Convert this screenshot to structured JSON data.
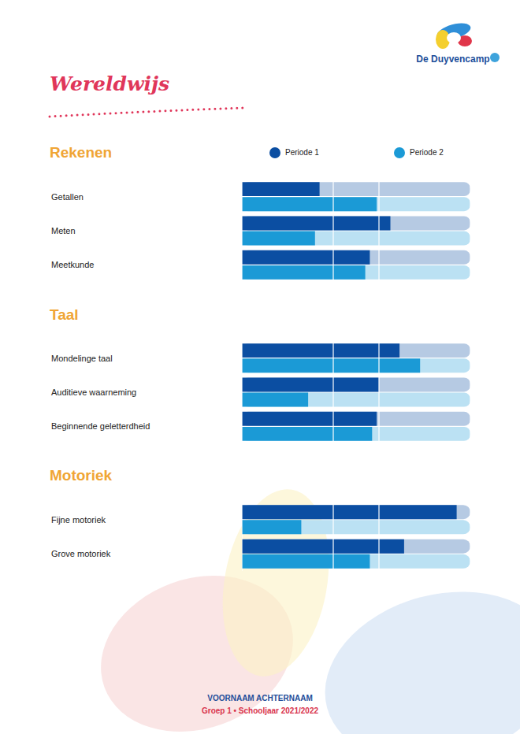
{
  "page": {
    "heading": "Wereldwijs",
    "logo": "De Duyvencamp",
    "footer": {
      "name": "VOORNAAM ACHTERNAAM",
      "line": "Groep 1 • Schooljaar 2021/2022"
    }
  },
  "chart_data": [
    {
      "type": "bar",
      "title": "Rekenen",
      "orientation": "horizontal",
      "categories": [
        "Getallen",
        "Meten",
        "Meetkunde"
      ],
      "series": [
        {
          "name": "Periode 1",
          "color": "#0b4ea2",
          "values": [
            34,
            65,
            56
          ]
        },
        {
          "name": "Periode 2",
          "color": "#1b9ad6",
          "values": [
            59,
            32,
            54
          ]
        }
      ],
      "xlim": [
        0,
        100
      ],
      "xticks": [
        0,
        40,
        60,
        100
      ],
      "grid": true,
      "tick_labels": "y",
      "legend": "top-right"
    },
    {
      "type": "bar",
      "title": "Taal",
      "orientation": "horizontal",
      "categories": [
        "Mondelinge taal",
        "Auditieve waarneming",
        "Beginnende geletterdheid"
      ],
      "series": [
        {
          "name": "Periode 1",
          "color": "#0b4ea2",
          "values": [
            69,
            60,
            59
          ]
        },
        {
          "name": "Periode 2",
          "color": "#1b9ad6",
          "values": [
            78,
            29,
            57
          ]
        }
      ],
      "xlim": [
        0,
        100
      ],
      "xticks": [
        0,
        40,
        60,
        100
      ],
      "grid": true,
      "tick_labels": "y"
    },
    {
      "type": "bar",
      "title": "Motoriek",
      "orientation": "horizontal",
      "categories": [
        "Fijne motoriek",
        "Grove motoriek"
      ],
      "series": [
        {
          "name": "Periode 1",
          "color": "#0b4ea2",
          "values": [
            94,
            71
          ]
        },
        {
          "name": "Periode 2",
          "color": "#1b9ad6",
          "values": [
            26,
            56
          ]
        }
      ],
      "xlim": [
        0,
        100
      ],
      "xticks": [
        0,
        40,
        60,
        100
      ],
      "grid": true,
      "tick_labels": "y"
    }
  ]
}
